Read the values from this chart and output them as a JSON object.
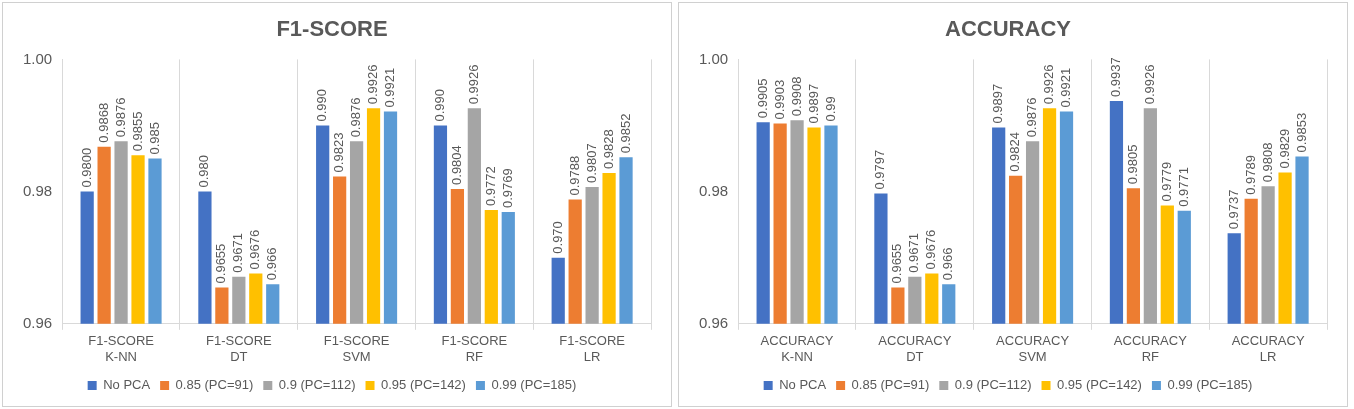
{
  "chart_data": [
    {
      "type": "bar",
      "title": "F1-SCORE",
      "categories": [
        "F1-SCORE\nK-NN",
        "F1-SCORE\nDT",
        "F1-SCORE\nSVM",
        "F1-SCORE\nRF",
        "F1-SCORE\nLR"
      ],
      "series": [
        {
          "name": "No PCA",
          "color": "#4472c4",
          "values": [
            0.98,
            0.98,
            0.99,
            0.99,
            0.97
          ],
          "value_labels": [
            "0.9800",
            "0.980",
            "0.990",
            "0.990",
            "0.970"
          ]
        },
        {
          "name": "0.85 (PC=91)",
          "color": "#ed7d31",
          "values": [
            0.9868,
            0.9655,
            0.9823,
            0.9804,
            0.9788
          ],
          "value_labels": [
            "0.9868",
            "0.9655",
            "0.9823",
            "0.9804",
            "0.9788"
          ]
        },
        {
          "name": "0.9 (PC=112)",
          "color": "#a5a5a5",
          "values": [
            0.9876,
            0.9671,
            0.9876,
            0.9926,
            0.9807
          ],
          "value_labels": [
            "0.9876",
            "0.9671",
            "0.9876",
            "0.9926",
            "0.9807"
          ]
        },
        {
          "name": "0.95 (PC=142)",
          "color": "#ffc000",
          "values": [
            0.9855,
            0.9676,
            0.9926,
            0.9772,
            0.9828
          ],
          "value_labels": [
            "0.9855",
            "0.9676",
            "0.9926",
            "0.9772",
            "0.9828"
          ]
        },
        {
          "name": "0.99 (PC=185)",
          "color": "#5b9bd5",
          "values": [
            0.985,
            0.966,
            0.9921,
            0.9769,
            0.9852
          ],
          "value_labels": [
            "0.985",
            "0.966",
            "0.9921",
            "0.9769",
            "0.9852"
          ]
        }
      ],
      "ylim": [
        0.96,
        1.0
      ],
      "yticks": [
        {
          "value": 0.96,
          "label": "0.96"
        },
        {
          "value": 0.98,
          "label": "0.98"
        },
        {
          "value": 1.0,
          "label": "1.00"
        }
      ],
      "grid": "x",
      "legend": "bottom"
    },
    {
      "type": "bar",
      "title": "ACCURACY",
      "categories": [
        "ACCURACY\nK-NN",
        "ACCURACY\nDT",
        "ACCURACY\nSVM",
        "ACCURACY\nRF",
        "ACCURACY\nLR"
      ],
      "series": [
        {
          "name": "No PCA",
          "color": "#4472c4",
          "values": [
            0.9905,
            0.9797,
            0.9897,
            0.9937,
            0.9737
          ],
          "value_labels": [
            "0.9905",
            "0.9797",
            "0.9897",
            "0.9937",
            "0.9737"
          ]
        },
        {
          "name": "0.85 (PC=91)",
          "color": "#ed7d31",
          "values": [
            0.9903,
            0.9655,
            0.9824,
            0.9805,
            0.9789
          ],
          "value_labels": [
            "0.9903",
            "0.9655",
            "0.9824",
            "0.9805",
            "0.9789"
          ]
        },
        {
          "name": "0.9 (PC=112)",
          "color": "#a5a5a5",
          "values": [
            0.9908,
            0.9671,
            0.9876,
            0.9926,
            0.9808
          ],
          "value_labels": [
            "0.9908",
            "0.9671",
            "0.9876",
            "0.9926",
            "0.9808"
          ]
        },
        {
          "name": "0.95 (PC=142)",
          "color": "#ffc000",
          "values": [
            0.9897,
            0.9676,
            0.9926,
            0.9779,
            0.9829
          ],
          "value_labels": [
            "0.9897",
            "0.9676",
            "0.9926",
            "0.9779",
            "0.9829"
          ]
        },
        {
          "name": "0.99 (PC=185)",
          "color": "#5b9bd5",
          "values": [
            0.99,
            0.966,
            0.9921,
            0.9771,
            0.9853
          ],
          "value_labels": [
            "0.99",
            "0.966",
            "0.9921",
            "0.9771",
            "0.9853"
          ]
        }
      ],
      "ylim": [
        0.96,
        1.0
      ],
      "yticks": [
        {
          "value": 0.96,
          "label": "0.96"
        },
        {
          "value": 0.98,
          "label": "0.98"
        },
        {
          "value": 1.0,
          "label": "1.00"
        }
      ],
      "grid": "x",
      "legend": "bottom"
    }
  ]
}
